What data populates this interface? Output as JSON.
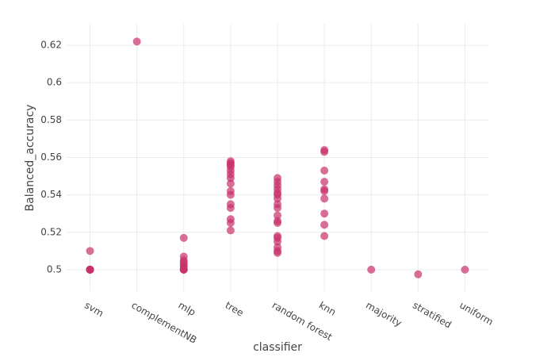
{
  "chart_data": {
    "type": "strip",
    "x_label": "classifier",
    "y_label": "Balanced_accuracy",
    "categories": [
      "svm",
      "complementNB",
      "mlp",
      "tree",
      "random forest",
      "knn",
      "majority",
      "stratified",
      "uniform"
    ],
    "values": [
      [
        0.5,
        0.5,
        0.5,
        0.5,
        0.5,
        0.5,
        0.51
      ],
      [
        0.622
      ],
      [
        0.517,
        0.507,
        0.505,
        0.504,
        0.503,
        0.502,
        0.501,
        0.5,
        0.5,
        0.5
      ],
      [
        0.558,
        0.557,
        0.556,
        0.555,
        0.553,
        0.551,
        0.549,
        0.546,
        0.542,
        0.54,
        0.535,
        0.533,
        0.527,
        0.525,
        0.521
      ],
      [
        0.549,
        0.547,
        0.545,
        0.543,
        0.541,
        0.54,
        0.538,
        0.535,
        0.533,
        0.529,
        0.526,
        0.525,
        0.518,
        0.517,
        0.515,
        0.512,
        0.51,
        0.509
      ],
      [
        0.564,
        0.563,
        0.553,
        0.547,
        0.543,
        0.542,
        0.538,
        0.53,
        0.524,
        0.518
      ],
      [
        0.5
      ],
      [
        0.4975
      ],
      [
        0.5
      ]
    ],
    "color": "#c9306a",
    "ylim": [
      0.4885,
      0.6315
    ],
    "yticks": [
      0.5,
      0.52,
      0.54,
      0.56,
      0.58,
      0.6,
      0.62
    ],
    "grid": true
  }
}
